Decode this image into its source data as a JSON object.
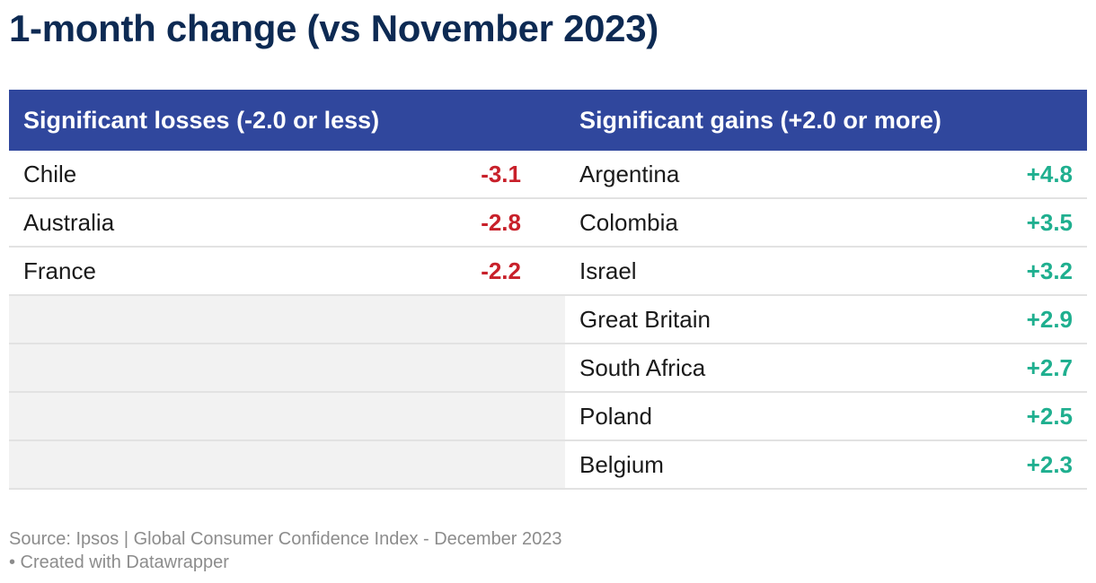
{
  "title": "1-month change (vs November 2023)",
  "header": {
    "losses_label": "Significant losses (-2.0 or less)",
    "gains_label": "Significant gains (+2.0 or more)"
  },
  "colors": {
    "header_bg": "#30479d",
    "title": "#0d2a53",
    "loss": "#c8202a",
    "gain": "#1faf8f"
  },
  "chart_data": {
    "type": "table",
    "title": "1-month change (vs November 2023)",
    "columns": [
      "Significant losses (-2.0 or less)",
      "Significant gains (+2.0 or more)"
    ],
    "losses": [
      {
        "country": "Chile",
        "value": "-3.1"
      },
      {
        "country": "Australia",
        "value": "-2.8"
      },
      {
        "country": "France",
        "value": "-2.2"
      }
    ],
    "gains": [
      {
        "country": "Argentina",
        "value": "+4.8"
      },
      {
        "country": "Colombia",
        "value": "+3.5"
      },
      {
        "country": "Israel",
        "value": "+3.2"
      },
      {
        "country": "Great Britain",
        "value": "+2.9"
      },
      {
        "country": "South Africa",
        "value": "+2.7"
      },
      {
        "country": "Poland",
        "value": "+2.5"
      },
      {
        "country": "Belgium",
        "value": "+2.3"
      }
    ]
  },
  "footer": {
    "source": "Source: Ipsos | Global Consumer Confidence Index - December 2023",
    "credit": "• Created with Datawrapper"
  }
}
